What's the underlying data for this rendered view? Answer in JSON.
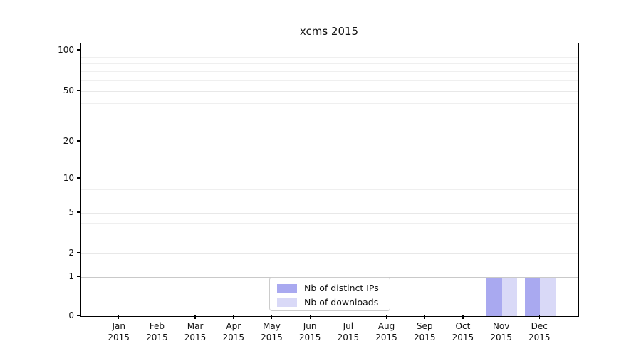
{
  "chart_data": {
    "type": "bar",
    "title": "xcms 2015",
    "categories": [
      "Jan",
      "Feb",
      "Mar",
      "Apr",
      "May",
      "Jun",
      "Jul",
      "Aug",
      "Sep",
      "Oct",
      "Nov",
      "Dec"
    ],
    "x_sublabel": "2015",
    "series": [
      {
        "name": "Nb of distinct IPs",
        "color": "#a9a9f0",
        "values": [
          0,
          0,
          0,
          0,
          0,
          0,
          0,
          0,
          0,
          0,
          1,
          1
        ]
      },
      {
        "name": "Nb of downloads",
        "color": "#d9d9f7",
        "values": [
          0,
          0,
          0,
          0,
          0,
          0,
          0,
          0,
          0,
          0,
          1,
          1
        ]
      }
    ],
    "y_ticks": [
      0,
      1,
      2,
      5,
      10,
      20,
      50,
      100
    ],
    "y_minor_gridlines": [
      3,
      4,
      6,
      7,
      8,
      9,
      30,
      40,
      60,
      70,
      80,
      90
    ],
    "yscale": "log-like",
    "ylim": [
      0,
      114
    ],
    "grid": true,
    "legend_position": "lower center"
  }
}
